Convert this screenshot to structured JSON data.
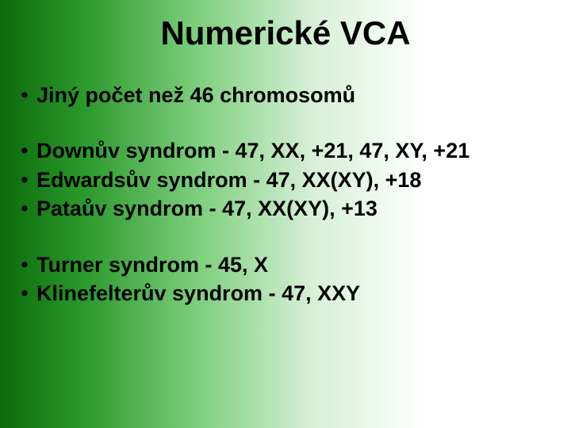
{
  "title": "Numerické VCA",
  "group1": {
    "line1": "Jiný počet než 46 chromosomů"
  },
  "group2": {
    "line1": "Downův syndrom   - 47, XX, +21,  47, XY, +21",
    "line2": "Edwardsův syndrom   - 47, XX(XY), +18",
    "line3": "Pataův syndrom   - 47,  XX(XY),  +13"
  },
  "group3": {
    "line1": "Turner syndrom   - 45, X",
    "line2": "Klinefelterův syndrom  - 47, XXY"
  },
  "colors": {
    "text": "#000000",
    "gradient_from": "#0a6b0a",
    "gradient_to": "#ffffff"
  },
  "font": {
    "family": "Comic Sans MS",
    "title_size_pt": 32,
    "body_size_pt": 20,
    "weight": "bold"
  },
  "bullet_char": "•"
}
